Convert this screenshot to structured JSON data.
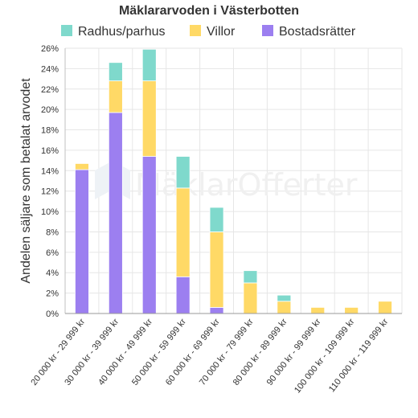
{
  "chart_data": {
    "type": "bar",
    "stacked": true,
    "title": "Mäklararvoden i Västerbotten",
    "xlabel": "",
    "ylabel": "Andelen säljare som betalat arvodet",
    "ylim": [
      0,
      26
    ],
    "y_ticks": [
      0,
      2,
      4,
      6,
      8,
      10,
      12,
      14,
      16,
      18,
      20,
      22,
      24,
      26
    ],
    "y_tick_suffix": "%",
    "grid": true,
    "legend_position": "top",
    "watermark": "MäklarOfferter",
    "categories": [
      "20 000 kr - 29 999 kr",
      "30 000 kr - 39 999 kr",
      "40 000 kr - 49 999 kr",
      "50 000 kr - 59 999 kr",
      "60 000 kr - 69 999 kr",
      "70 000 kr - 79 999 kr",
      "80 000 kr - 89 999 kr",
      "90 000 kr - 99 999 kr",
      "100 000 kr - 109 999 kr",
      "110 000 kr - 119 999 kr"
    ],
    "series": [
      {
        "name": "Bostadsrätter",
        "color": "#9c7ff0",
        "values": [
          14.1,
          19.7,
          15.4,
          3.6,
          0.6,
          0,
          0,
          0,
          0,
          0
        ]
      },
      {
        "name": "Villor",
        "color": "#ffd966",
        "values": [
          0.6,
          3.1,
          7.4,
          8.7,
          7.4,
          3.0,
          1.2,
          0.6,
          0.6,
          1.2
        ]
      },
      {
        "name": "Radhus/parhus",
        "color": "#7fd9cc",
        "values": [
          0,
          1.8,
          3.1,
          3.1,
          2.4,
          1.2,
          0.6,
          0,
          0,
          0
        ]
      }
    ],
    "legend_order": [
      "Radhus/parhus",
      "Villor",
      "Bostadsrätter"
    ]
  }
}
